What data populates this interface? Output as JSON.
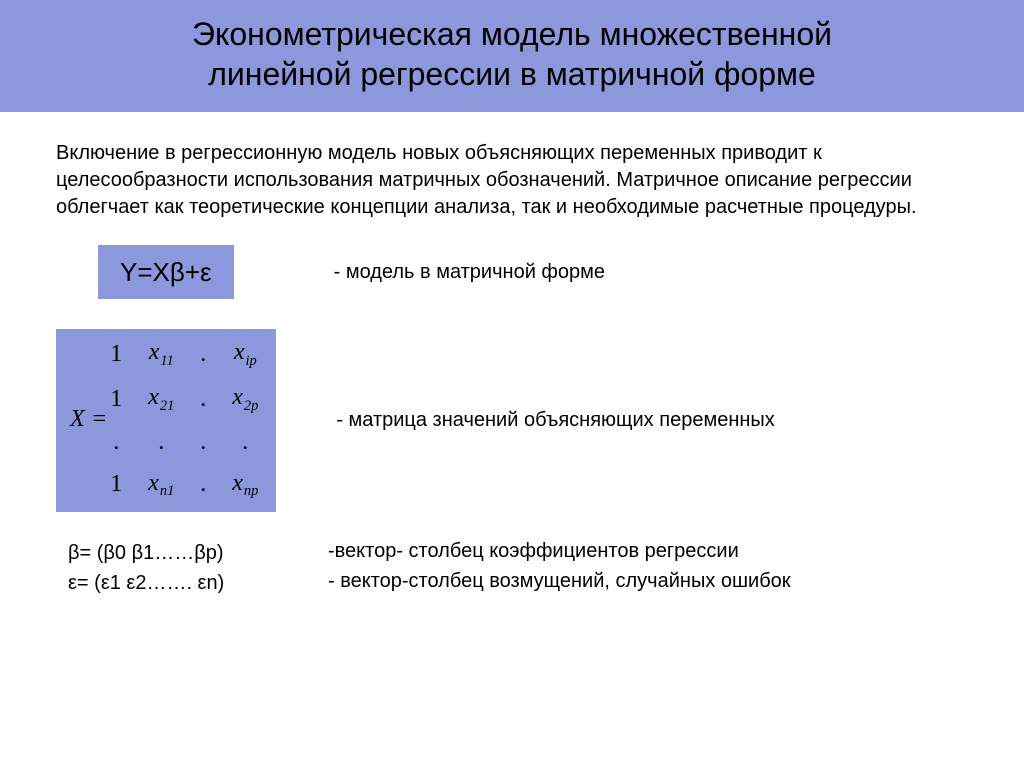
{
  "colors": {
    "accent_bg": "#8c97dc",
    "slide_bg": "#ffffff",
    "text": "#000000"
  },
  "title": {
    "line1": "Эконометрическая модель множественной",
    "line2": "линейной регрессии в матричной форме"
  },
  "intro": "Включение в регрессионную модель новых объясняющих переменных приводит к целесообразности использования матричных обозначений. Матричное описание регрессии облегчает как теоретические концепции анализа, так и необходимые расчетные процедуры.",
  "model": {
    "formula": "Y=Xβ+ε",
    "description": "- модель в матричной форме"
  },
  "matrix": {
    "lhs": "X",
    "eq": "=",
    "rows": [
      [
        "1",
        "x_{11}",
        ".",
        "x_{ip}"
      ],
      [
        "1",
        "x_{21}",
        ".",
        "x_{2p}"
      ],
      [
        ".",
        ".",
        ".",
        "."
      ],
      [
        "1",
        "x_{n1}",
        ".",
        "x_{np}"
      ]
    ],
    "description": "- матрица значений объясняющих переменных"
  },
  "beta_line": "β= (β0 β1……βp)",
  "eps_line": "ε= (ε1 ε2……. εn)",
  "beta_desc": "-вектор- столбец коэффициентов регрессии",
  "eps_desc": "- вектор-столбец возмущений, случайных ошибок"
}
